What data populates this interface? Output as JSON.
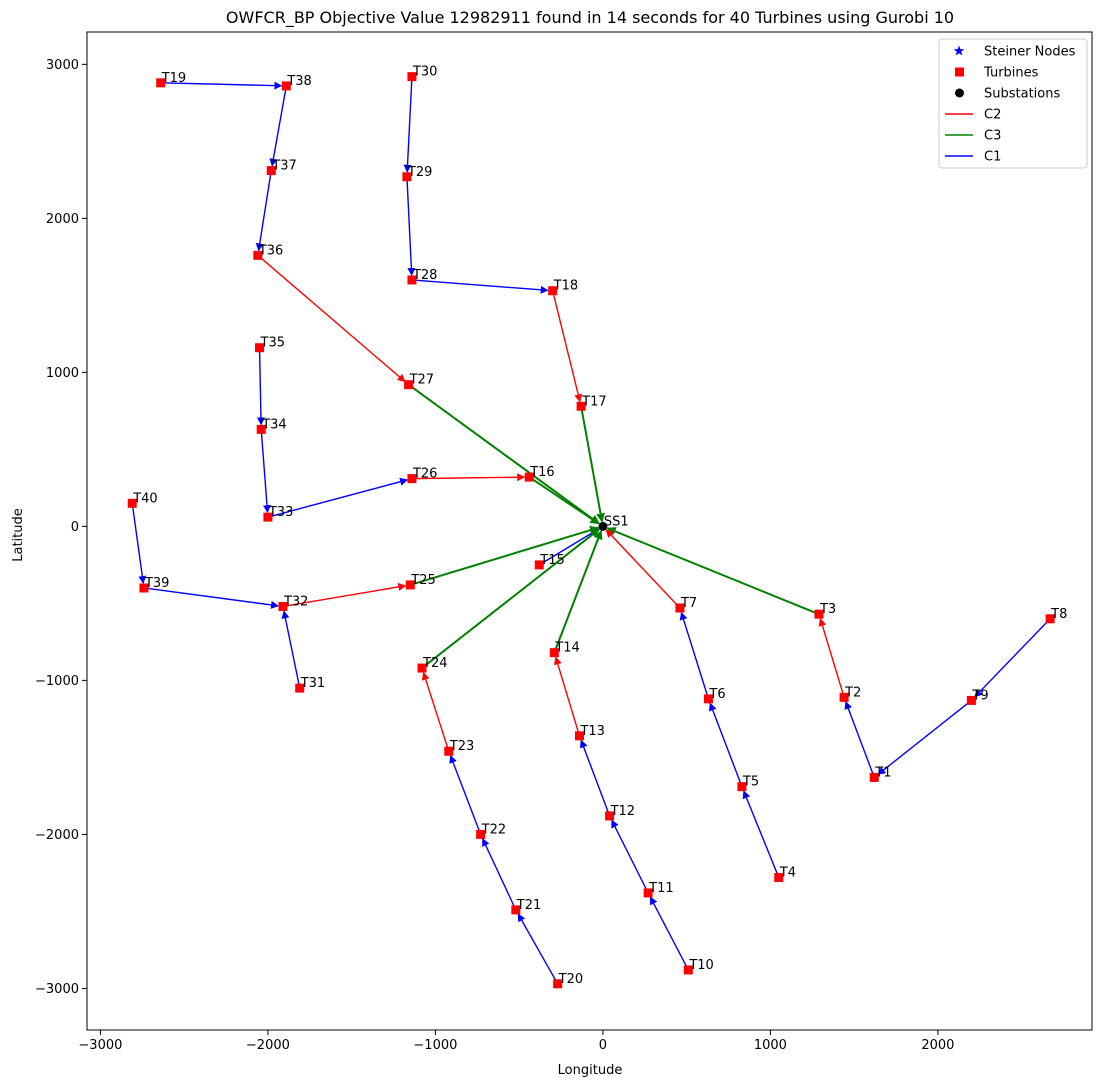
{
  "chart_data": {
    "type": "scatter",
    "title": "OWFCR_BP Objective Value 12982911 found in 14 seconds for 40 Turbines using Gurobi 10",
    "xlabel": "Longitude",
    "ylabel": "Latitude",
    "xlim": [
      -3080,
      2920
    ],
    "ylim": [
      -3270,
      3210
    ],
    "xticks": [
      -3000,
      -2000,
      -1000,
      0,
      1000,
      2000
    ],
    "yticks": [
      -3000,
      -2000,
      -1000,
      0,
      1000,
      2000,
      3000
    ],
    "grid": false,
    "legend_position": "top-right",
    "legend": [
      {
        "label": "Steiner Nodes",
        "marker": "star",
        "color": "#0000ff"
      },
      {
        "label": "Turbines",
        "marker": "square",
        "color": "#ff0000"
      },
      {
        "label": "Substations",
        "marker": "circle",
        "color": "#000000"
      },
      {
        "label": "C2",
        "marker": "line",
        "color": "#ff0000"
      },
      {
        "label": "C3",
        "marker": "line",
        "color": "#008000"
      },
      {
        "label": "C1",
        "marker": "line",
        "color": "#0000ff"
      }
    ],
    "cable_colors": {
      "C1": "#0000ff",
      "C2": "#ff0000",
      "C3": "#008000"
    },
    "turbine_color": "#ff0000",
    "substation_color": "#000000",
    "substations": [
      {
        "id": "SS1",
        "x": 0,
        "y": 0
      }
    ],
    "turbines": [
      {
        "id": "T1",
        "x": 1620,
        "y": -1630
      },
      {
        "id": "T2",
        "x": 1440,
        "y": -1110
      },
      {
        "id": "T3",
        "x": 1290,
        "y": -570
      },
      {
        "id": "T4",
        "x": 1050,
        "y": -2280
      },
      {
        "id": "T5",
        "x": 830,
        "y": -1690
      },
      {
        "id": "T6",
        "x": 630,
        "y": -1120
      },
      {
        "id": "T7",
        "x": 460,
        "y": -530
      },
      {
        "id": "T8",
        "x": 2670,
        "y": -600
      },
      {
        "id": "T9",
        "x": 2200,
        "y": -1130
      },
      {
        "id": "T10",
        "x": 510,
        "y": -2880
      },
      {
        "id": "T11",
        "x": 270,
        "y": -2380
      },
      {
        "id": "T12",
        "x": 40,
        "y": -1880
      },
      {
        "id": "T13",
        "x": -140,
        "y": -1360
      },
      {
        "id": "T14",
        "x": -290,
        "y": -820
      },
      {
        "id": "T15",
        "x": -380,
        "y": -250
      },
      {
        "id": "T16",
        "x": -440,
        "y": 320
      },
      {
        "id": "T17",
        "x": -130,
        "y": 780
      },
      {
        "id": "T18",
        "x": -300,
        "y": 1530
      },
      {
        "id": "T19",
        "x": -2640,
        "y": 2880
      },
      {
        "id": "T20",
        "x": -270,
        "y": -2970
      },
      {
        "id": "T21",
        "x": -520,
        "y": -2490
      },
      {
        "id": "T22",
        "x": -730,
        "y": -2000
      },
      {
        "id": "T23",
        "x": -920,
        "y": -1460
      },
      {
        "id": "T24",
        "x": -1080,
        "y": -920
      },
      {
        "id": "T25",
        "x": -1150,
        "y": -380
      },
      {
        "id": "T26",
        "x": -1140,
        "y": 310
      },
      {
        "id": "T27",
        "x": -1160,
        "y": 920
      },
      {
        "id": "T28",
        "x": -1140,
        "y": 1600
      },
      {
        "id": "T29",
        "x": -1170,
        "y": 2270
      },
      {
        "id": "T30",
        "x": -1140,
        "y": 2920
      },
      {
        "id": "T31",
        "x": -1810,
        "y": -1050
      },
      {
        "id": "T32",
        "x": -1910,
        "y": -520
      },
      {
        "id": "T33",
        "x": -2000,
        "y": 60
      },
      {
        "id": "T34",
        "x": -2040,
        "y": 630
      },
      {
        "id": "T35",
        "x": -2050,
        "y": 1160
      },
      {
        "id": "T36",
        "x": -2060,
        "y": 1760
      },
      {
        "id": "T37",
        "x": -1980,
        "y": 2310
      },
      {
        "id": "T38",
        "x": -1890,
        "y": 2860
      },
      {
        "id": "T39",
        "x": -2740,
        "y": -400
      },
      {
        "id": "T40",
        "x": -2810,
        "y": 150
      }
    ],
    "connections": [
      {
        "from": "T8",
        "to": "T9",
        "cable": "C1"
      },
      {
        "from": "T9",
        "to": "T1",
        "cable": "C1"
      },
      {
        "from": "T1",
        "to": "T2",
        "cable": "C1"
      },
      {
        "from": "T2",
        "to": "T3",
        "cable": "C2"
      },
      {
        "from": "T3",
        "to": "SS1",
        "cable": "C3"
      },
      {
        "from": "T4",
        "to": "T5",
        "cable": "C1"
      },
      {
        "from": "T5",
        "to": "T6",
        "cable": "C1"
      },
      {
        "from": "T6",
        "to": "T7",
        "cable": "C1"
      },
      {
        "from": "T7",
        "to": "SS1",
        "cable": "C2"
      },
      {
        "from": "T10",
        "to": "T11",
        "cable": "C1"
      },
      {
        "from": "T11",
        "to": "T12",
        "cable": "C1"
      },
      {
        "from": "T12",
        "to": "T13",
        "cable": "C1"
      },
      {
        "from": "T13",
        "to": "T14",
        "cable": "C2"
      },
      {
        "from": "T14",
        "to": "SS1",
        "cable": "C3"
      },
      {
        "from": "T15",
        "to": "SS1",
        "cable": "C1"
      },
      {
        "from": "T20",
        "to": "T21",
        "cable": "C1"
      },
      {
        "from": "T21",
        "to": "T22",
        "cable": "C1"
      },
      {
        "from": "T22",
        "to": "T23",
        "cable": "C1"
      },
      {
        "from": "T23",
        "to": "T24",
        "cable": "C2"
      },
      {
        "from": "T24",
        "to": "SS1",
        "cable": "C3"
      },
      {
        "from": "T40",
        "to": "T39",
        "cable": "C1"
      },
      {
        "from": "T39",
        "to": "T32",
        "cable": "C1"
      },
      {
        "from": "T31",
        "to": "T32",
        "cable": "C1"
      },
      {
        "from": "T32",
        "to": "T25",
        "cable": "C2"
      },
      {
        "from": "T25",
        "to": "SS1",
        "cable": "C3"
      },
      {
        "from": "T35",
        "to": "T34",
        "cable": "C1"
      },
      {
        "from": "T34",
        "to": "T33",
        "cable": "C1"
      },
      {
        "from": "T33",
        "to": "T26",
        "cable": "C1"
      },
      {
        "from": "T26",
        "to": "T16",
        "cable": "C2"
      },
      {
        "from": "T16",
        "to": "SS1",
        "cable": "C3"
      },
      {
        "from": "T19",
        "to": "T38",
        "cable": "C1"
      },
      {
        "from": "T38",
        "to": "T37",
        "cable": "C1"
      },
      {
        "from": "T37",
        "to": "T36",
        "cable": "C1"
      },
      {
        "from": "T36",
        "to": "T27",
        "cable": "C2"
      },
      {
        "from": "T27",
        "to": "SS1",
        "cable": "C3"
      },
      {
        "from": "T30",
        "to": "T29",
        "cable": "C1"
      },
      {
        "from": "T29",
        "to": "T28",
        "cable": "C1"
      },
      {
        "from": "T28",
        "to": "T18",
        "cable": "C1"
      },
      {
        "from": "T18",
        "to": "T17",
        "cable": "C2"
      },
      {
        "from": "T17",
        "to": "SS1",
        "cable": "C3"
      }
    ]
  }
}
